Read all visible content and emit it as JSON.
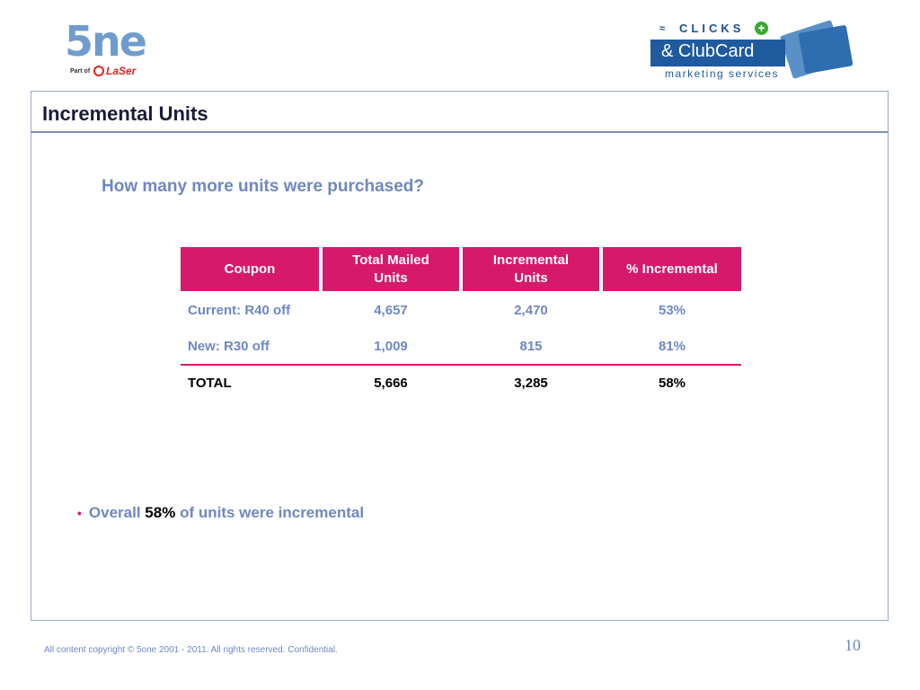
{
  "logos": {
    "left": {
      "main": "5ne",
      "part_of": "Part of",
      "brand": "LaSer"
    },
    "right": {
      "clicks": "CLICKS",
      "clubcard": "& ClubCard",
      "tagline": "marketing services"
    }
  },
  "slide": {
    "title": "Incremental Units",
    "question": "How many more units were purchased?"
  },
  "table": {
    "headers": [
      "Coupon",
      "Total Mailed Units",
      "Incremental Units",
      "% Incremental"
    ],
    "rows": [
      {
        "coupon": "Current: R40 off",
        "mailed": "4,657",
        "incremental": "2,470",
        "pct": "53%"
      },
      {
        "coupon": "New: R30 off",
        "mailed": "1,009",
        "incremental": "815",
        "pct": "81%"
      }
    ],
    "total": {
      "coupon": "TOTAL",
      "mailed": "5,666",
      "incremental": "3,285",
      "pct": "58%"
    }
  },
  "bullet": {
    "prefix": "Overall",
    "highlight": "58%",
    "suffix": "of units were incremental"
  },
  "footer": {
    "copyright": "All content copyright © 5one 2001 - 2011. All rights reserved. Confidential.",
    "page_number": "10"
  },
  "colors": {
    "accent": "#d7196b",
    "text_blue": "#6f87c2",
    "frame": "#9aa7c5"
  }
}
